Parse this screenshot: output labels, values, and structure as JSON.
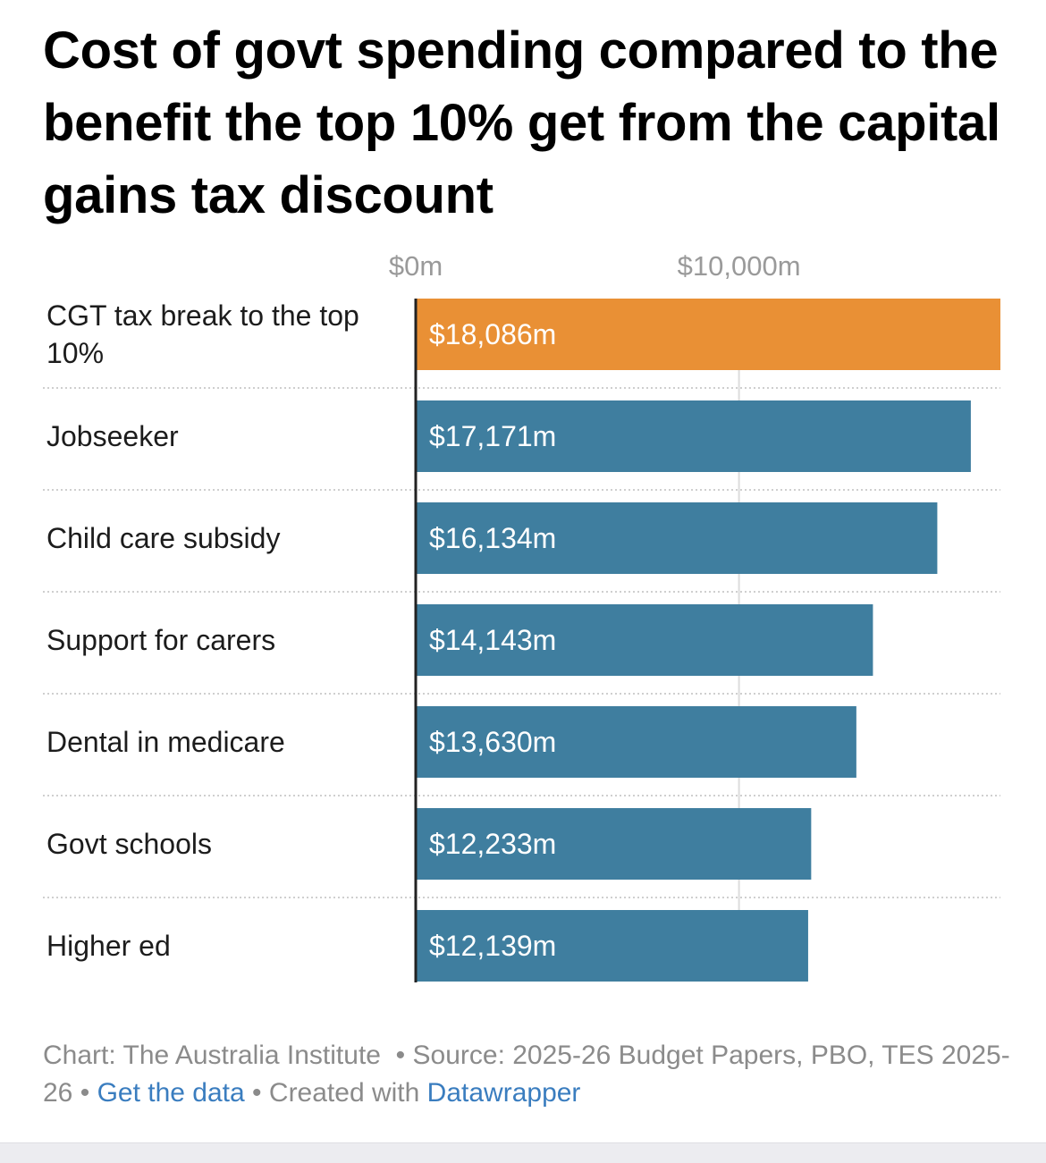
{
  "header": {
    "title": "Cost of govt spending compared to the benefit the top 10% get from the capital gains tax discount"
  },
  "chart_data": {
    "type": "bar",
    "orientation": "horizontal",
    "title": "Cost of govt spending compared to the benefit the top 10% get from the capital gains tax discount",
    "xlabel": "",
    "ylabel": "",
    "xlim": [
      0,
      18086
    ],
    "ticks": [
      {
        "value": 0,
        "label": "$0m"
      },
      {
        "value": 10000,
        "label": "$10,000m"
      }
    ],
    "categories": [
      "CGT tax break to the top 10%",
      "Jobseeker",
      "Child care subsidy",
      "Support for carers",
      "Dental in medicare",
      "Govt schools",
      "Higher ed"
    ],
    "category_lines": [
      [
        "CGT tax break to the top",
        "10%"
      ],
      [
        "Jobseeker"
      ],
      [
        "Child care subsidy"
      ],
      [
        "Support for carers"
      ],
      [
        "Dental in medicare"
      ],
      [
        "Govt schools"
      ],
      [
        "Higher ed"
      ]
    ],
    "values": [
      18086,
      17171,
      16134,
      14143,
      13630,
      12233,
      12139
    ],
    "value_labels": [
      "$18,086m",
      "$17,171m",
      "$16,134m",
      "$14,143m",
      "$13,630m",
      "$12,233m",
      "$12,139m"
    ],
    "highlight_index": 0,
    "colors": {
      "highlight": "#e99035",
      "default": "#3f7e9f",
      "grid": "#dcdcdc",
      "axis": "#222222",
      "separator": "#cfcfcf"
    }
  },
  "footer": {
    "chart_credit": "Chart: The Australia Institute",
    "separator": "•",
    "source": "Source: 2025-26 Budget Papers, PBO, TES 2025-26",
    "get_data_link": "Get the data",
    "created_with": "Created with",
    "datawrapper_link": "Datawrapper"
  }
}
